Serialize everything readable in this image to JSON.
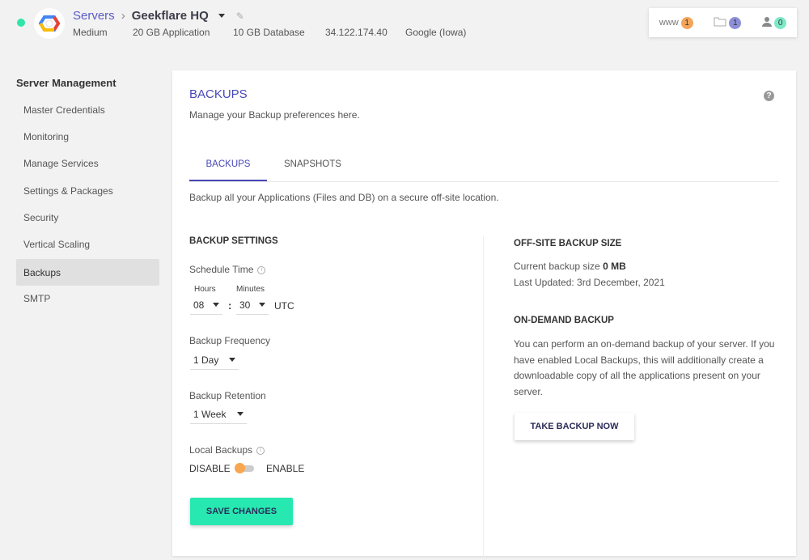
{
  "header": {
    "breadcrumb_root": "Servers",
    "server_name": "Geekflare HQ",
    "meta": [
      "Medium",
      "20 GB Application",
      "10 GB Database",
      "34.122.174.40",
      "Google (Iowa)"
    ],
    "badges": [
      {
        "label": "www",
        "count": "1",
        "color": "#f4a55a",
        "icon": "www-icon"
      },
      {
        "label": "",
        "count": "1",
        "color": "#8d8fd6",
        "icon": "folder-icon"
      },
      {
        "label": "",
        "count": "0",
        "color": "#7ee8c6",
        "icon": "user-icon"
      }
    ]
  },
  "sidebar": {
    "title": "Server Management",
    "items": [
      {
        "label": "Master Credentials"
      },
      {
        "label": "Monitoring"
      },
      {
        "label": "Manage Services"
      },
      {
        "label": "Settings & Packages"
      },
      {
        "label": "Security"
      },
      {
        "label": "Vertical Scaling"
      },
      {
        "label": "Backups",
        "active": true
      },
      {
        "label": "SMTP"
      }
    ]
  },
  "main": {
    "title": "BACKUPS",
    "subtitle": "Manage your Backup preferences here.",
    "tabs": [
      {
        "label": "BACKUPS"
      },
      {
        "label": "SNAPSHOTS"
      }
    ],
    "description": "Backup all your Applications (Files and DB) on a secure off-site location.",
    "settings": {
      "title": "BACKUP SETTINGS",
      "schedule_label": "Schedule Time",
      "hours_label": "Hours",
      "minutes_label": "Minutes",
      "hours": "08",
      "minutes": "30",
      "colon": ":",
      "tz": "UTC",
      "frequency_label": "Backup Frequency",
      "frequency": "1 Day",
      "retention_label": "Backup Retention",
      "retention": "1 Week",
      "local_label": "Local Backups",
      "disable": "DISABLE",
      "enable": "ENABLE",
      "local_enabled": false,
      "save": "SAVE CHANGES"
    },
    "offsite": {
      "title": "OFF-SITE BACKUP SIZE",
      "size_prefix": "Current backup size",
      "size": "0 MB",
      "updated": "Last Updated: 3rd December, 2021"
    },
    "ondemand": {
      "title": "ON-DEMAND BACKUP",
      "text": "You can perform an on-demand backup of your server. If you have enabled Local Backups, this will additionally create a downloadable copy of all the applications present on your server.",
      "button": "TAKE BACKUP NOW"
    }
  }
}
